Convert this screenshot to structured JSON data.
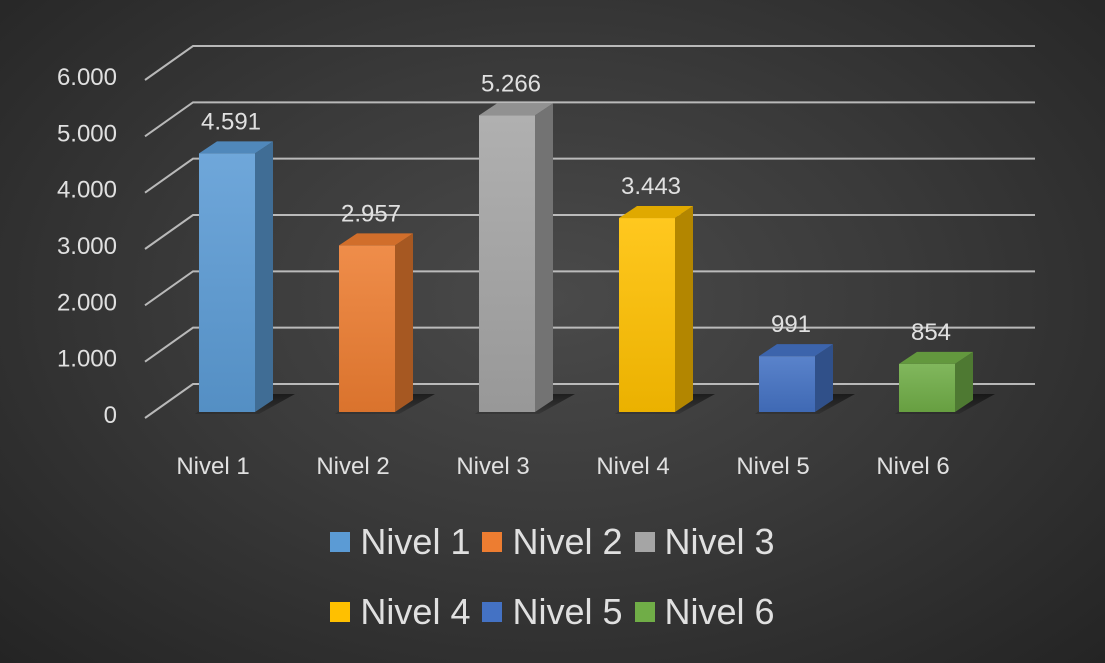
{
  "chart_data": {
    "type": "bar",
    "style": "3d-column",
    "categories": [
      "Nivel 1",
      "Nivel 2",
      "Nivel 3",
      "Nivel 4",
      "Nivel 5",
      "Nivel 6"
    ],
    "values": [
      4591,
      2957,
      5266,
      3443,
      991,
      854
    ],
    "value_labels": [
      "4.591",
      "2.957",
      "5.266",
      "3.443",
      "991",
      "854"
    ],
    "colors": [
      "#5b9bd5",
      "#ed7d31",
      "#a5a5a5",
      "#ffc000",
      "#4472c4",
      "#70ad47"
    ],
    "yticks": [
      "0",
      "1.000",
      "2.000",
      "3.000",
      "4.000",
      "5.000",
      "6.000"
    ],
    "ylim": [
      0,
      6000
    ],
    "grid": true,
    "legend": {
      "position": "bottom",
      "rows": [
        [
          "Nivel 1",
          "Nivel 2",
          "Nivel 3"
        ],
        [
          "Nivel 4",
          "Nivel 5",
          "Nivel 6"
        ]
      ]
    },
    "title": "",
    "xlabel": "",
    "ylabel": ""
  },
  "theme": {
    "text_color": "#e0e0e0",
    "grid_color": "#d0d0d0"
  }
}
